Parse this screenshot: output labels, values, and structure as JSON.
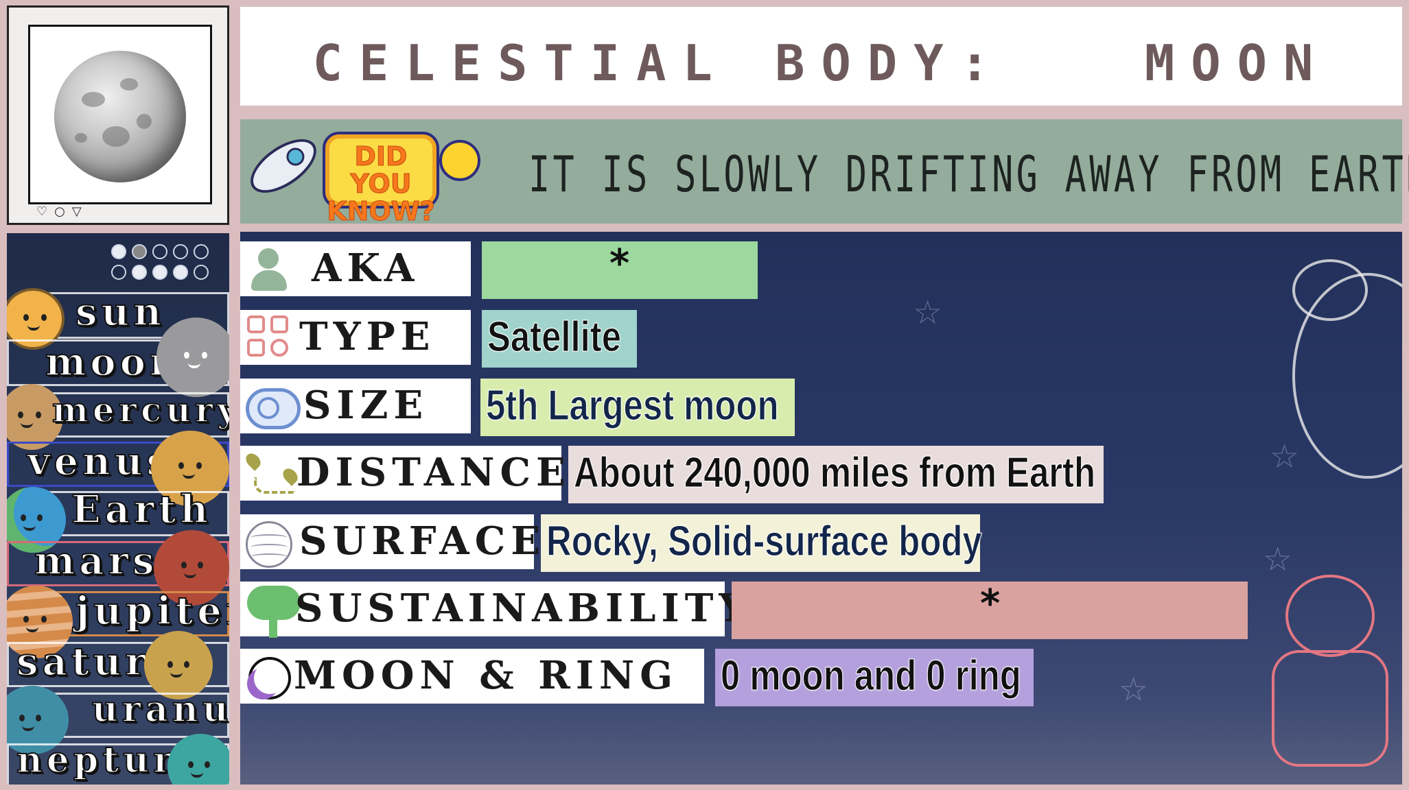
{
  "header": {
    "title": "CELESTIAL BODY:   MOON"
  },
  "fact": {
    "badge_line1": "DID YOU",
    "badge_line2": "KNOW?",
    "text": "IT IS SLOWLY DRIFTING AWAY FROM EARTH"
  },
  "sidebar": {
    "items": [
      {
        "label": "sun",
        "color": "#f1b34a"
      },
      {
        "label": "moon",
        "color": "#9a9a9c"
      },
      {
        "label": "mercury",
        "color": "#c89a64"
      },
      {
        "label": "venus",
        "color": "#d8a24a"
      },
      {
        "label": "Earth",
        "color": "#3c9ad1"
      },
      {
        "label": "mars",
        "color": "#b24a3a"
      },
      {
        "label": "jupiter",
        "color": "#d58a4a"
      },
      {
        "label": "saturn",
        "color": "#c9a24e"
      },
      {
        "label": "uranus",
        "color": "#3f8ea6"
      },
      {
        "label": "neptune",
        "color": "#3ea6a0"
      }
    ]
  },
  "rows": [
    {
      "label": "AKA",
      "value": "*",
      "icon": "person-icon",
      "value_color": "#9dd89f"
    },
    {
      "label": "TYPE",
      "value": "Satellite",
      "icon": "grid-search-icon",
      "value_color": "#9fd3cc"
    },
    {
      "label": "SIZE",
      "value": "5th Largest moon",
      "icon": "tape-measure-icon",
      "value_color": "#d8ecae"
    },
    {
      "label": "DISTANCE",
      "value": "About 240,000 miles from Earth",
      "icon": "route-pin-icon",
      "value_color": "#e8dcdc"
    },
    {
      "label": "SURFACE",
      "value": "Rocky, Solid-surface body",
      "icon": "globe-lines-icon",
      "value_color": "#f3f2d8"
    },
    {
      "label": "SUSTAINABILITY",
      "value": "*",
      "icon": "tree-icon",
      "value_color": "#d9a29f"
    },
    {
      "label": "MOON & RING",
      "value": "0 moon and 0 ring",
      "icon": "crescent-icon",
      "value_color": "#b4a0dc"
    }
  ]
}
